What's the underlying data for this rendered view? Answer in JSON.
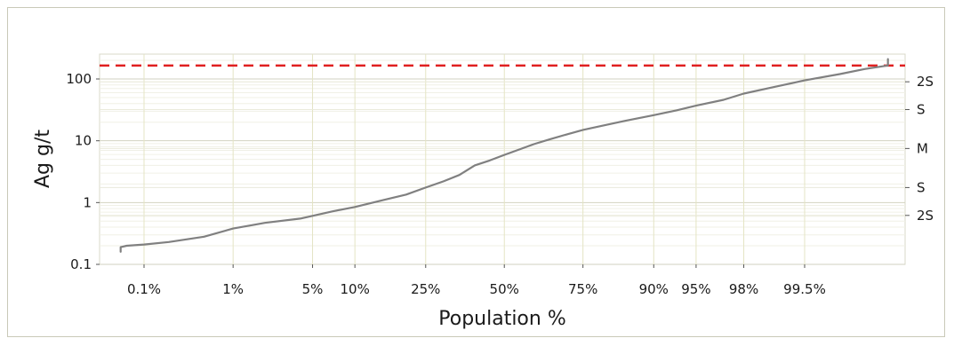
{
  "chart_data": {
    "type": "line",
    "xlabel": "Population %",
    "ylabel": "Ag g/t",
    "y_scale": "log",
    "x_scale": "probability",
    "ylim": [
      0.1,
      250
    ],
    "y_ticks": [
      {
        "value": 0.1,
        "label": "0.1"
      },
      {
        "value": 1,
        "label": "1"
      },
      {
        "value": 10,
        "label": "10"
      },
      {
        "value": 100,
        "label": "100"
      }
    ],
    "x_ticks": [
      {
        "value": 0.1,
        "label": "0.1%"
      },
      {
        "value": 1,
        "label": "1%"
      },
      {
        "value": 5,
        "label": "5%"
      },
      {
        "value": 10,
        "label": "10%"
      },
      {
        "value": 25,
        "label": "25%"
      },
      {
        "value": 50,
        "label": "50%"
      },
      {
        "value": 75,
        "label": "75%"
      },
      {
        "value": 90,
        "label": "90%"
      },
      {
        "value": 95,
        "label": "95%"
      },
      {
        "value": 98,
        "label": "98%"
      },
      {
        "value": 99.5,
        "label": "99.5%"
      }
    ],
    "right_axis_labels": [
      {
        "label": "2S",
        "sigma": 2
      },
      {
        "label": "S",
        "sigma": 1
      },
      {
        "label": "M",
        "sigma": 0
      },
      {
        "label": "S",
        "sigma": -1
      },
      {
        "label": "2S",
        "sigma": -2
      }
    ],
    "right_axis_values": [
      {
        "sigma": 2,
        "value": 90
      },
      {
        "sigma": 1,
        "value": 32
      },
      {
        "sigma": 0,
        "value": 7.5
      },
      {
        "sigma": -1,
        "value": 1.75
      },
      {
        "sigma": -2,
        "value": 0.62
      }
    ],
    "series": [
      {
        "color": "#808080",
        "x": [
          0.05,
          0.05,
          0.06,
          0.1,
          0.2,
          0.5,
          1,
          2,
          4,
          7,
          10,
          15,
          20,
          25,
          30,
          35,
          40,
          45,
          50,
          55,
          60,
          65,
          70,
          75,
          80,
          85,
          90,
          93,
          95,
          97,
          98,
          99,
          99.5,
          99.8,
          99.9,
          99.95,
          99.95
        ],
        "values": [
          0.16,
          0.19,
          0.2,
          0.21,
          0.23,
          0.28,
          0.38,
          0.47,
          0.55,
          0.72,
          0.85,
          1.1,
          1.35,
          1.75,
          2.2,
          2.8,
          4,
          4.8,
          5.9,
          7.2,
          8.8,
          10.5,
          12.5,
          15,
          17.5,
          21,
          26,
          31,
          37,
          46,
          58,
          75,
          95,
          120,
          145,
          165,
          210
        ]
      }
    ],
    "threshold": {
      "value": 165,
      "color": "#e02020",
      "style": "dashed"
    },
    "grid": true
  }
}
